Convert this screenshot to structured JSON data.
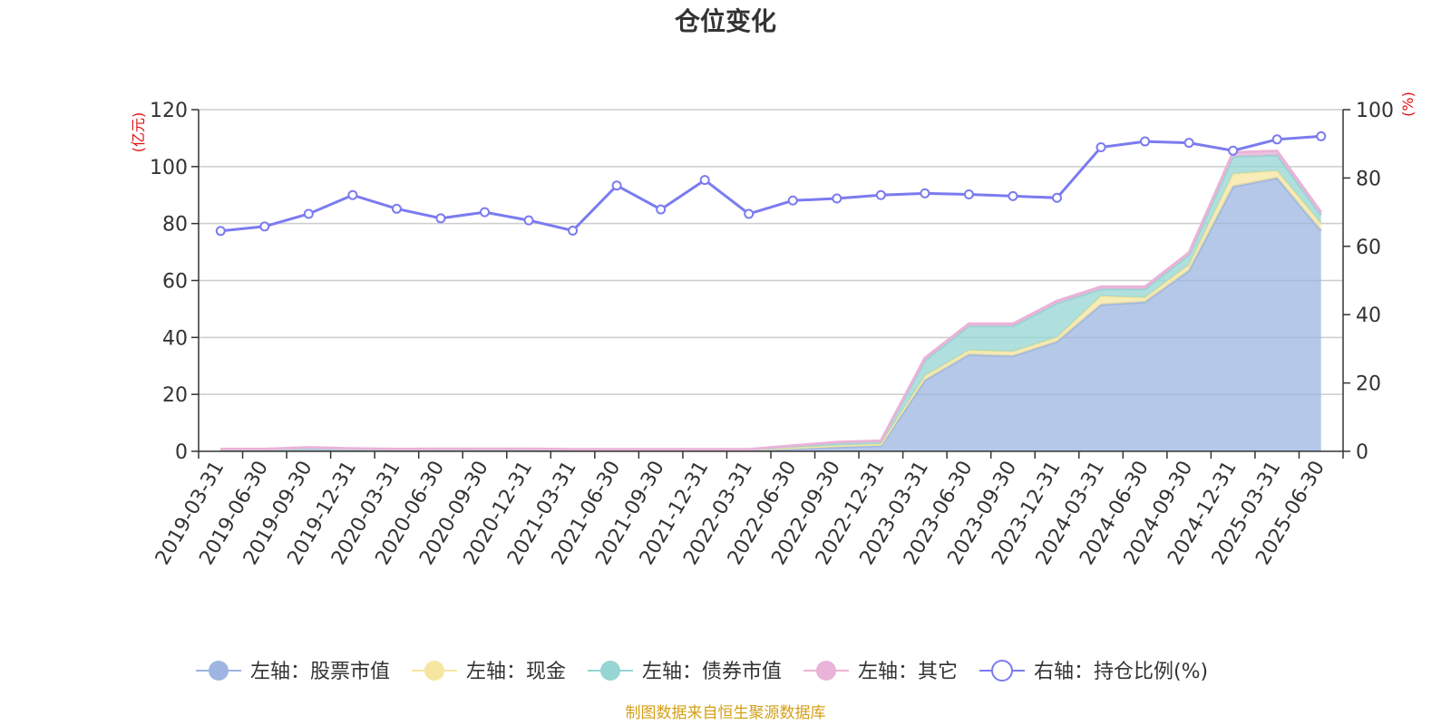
{
  "chart_data": {
    "type": "area",
    "title": "仓位变化",
    "left_unit": "(亿元)",
    "right_unit": "(%)",
    "categories": [
      "2019-03-31",
      "2019-06-30",
      "2019-09-30",
      "2019-12-31",
      "2020-03-31",
      "2020-06-30",
      "2020-09-30",
      "2020-12-31",
      "2021-03-31",
      "2021-06-30",
      "2021-09-30",
      "2021-12-31",
      "2022-03-31",
      "2022-06-30",
      "2022-09-30",
      "2022-12-31",
      "2023-03-31",
      "2023-06-30",
      "2023-09-30",
      "2023-12-31",
      "2024-03-31",
      "2024-06-30",
      "2024-09-30",
      "2024-12-31",
      "2025-03-31",
      "2025-06-30"
    ],
    "left_axis": {
      "min": 0,
      "max": 120,
      "ticks": [
        0,
        20,
        40,
        60,
        80,
        100,
        120
      ]
    },
    "right_axis": {
      "min": 0,
      "max": 100,
      "ticks": [
        0,
        20,
        40,
        60,
        80,
        100
      ]
    },
    "series": [
      {
        "name": "左轴：股票市值",
        "axis": "left",
        "stack": true,
        "color": "#9db5e0",
        "values": [
          0.5,
          0.5,
          1.0,
          0.7,
          0.5,
          0.6,
          0.6,
          0.6,
          0.4,
          0.4,
          0.4,
          0.4,
          0.4,
          1.0,
          1.5,
          2.0,
          25.0,
          34.0,
          33.5,
          38.5,
          51.5,
          52.5,
          63.5,
          93.0,
          96.0,
          77.5
        ]
      },
      {
        "name": "左轴：现金",
        "axis": "left",
        "stack": true,
        "color": "#f6e6a0",
        "values": [
          0.1,
          0.1,
          0.1,
          0.1,
          0.1,
          0.1,
          0.1,
          0.1,
          0.1,
          0.1,
          0.1,
          0.1,
          0.1,
          0.3,
          0.5,
          0.5,
          1.5,
          1.5,
          1.5,
          1.5,
          3.0,
          1.5,
          2.0,
          4.5,
          2.5,
          2.5
        ]
      },
      {
        "name": "左轴：债券市值",
        "axis": "left",
        "stack": true,
        "color": "#95d5d3",
        "values": [
          0.0,
          0.0,
          0.0,
          0.0,
          0.0,
          0.0,
          0.0,
          0.0,
          0.0,
          0.0,
          0.0,
          0.0,
          0.0,
          0.5,
          1.0,
          1.0,
          5.5,
          8.5,
          9.0,
          12.0,
          2.5,
          3.0,
          3.5,
          6.0,
          5.5,
          3.0
        ]
      },
      {
        "name": "左轴：其它",
        "axis": "left",
        "stack": true,
        "color": "#eab3d8",
        "values": [
          0.2,
          0.2,
          0.3,
          0.2,
          0.2,
          0.2,
          0.2,
          0.2,
          0.2,
          0.2,
          0.2,
          0.2,
          0.2,
          0.2,
          0.2,
          0.2,
          0.8,
          0.8,
          0.8,
          0.8,
          0.8,
          0.8,
          0.8,
          1.5,
          1.5,
          1.0
        ]
      },
      {
        "name": "右轴：持仓比例(%)",
        "axis": "right",
        "stack": false,
        "color": "#7b7bf0",
        "values": [
          64.5,
          65.8,
          69.5,
          75.0,
          71.0,
          68.2,
          70.0,
          67.6,
          64.6,
          77.8,
          70.8,
          79.4,
          69.5,
          73.4,
          74.0,
          75.0,
          75.5,
          75.2,
          74.7,
          74.2,
          89.0,
          90.7,
          90.3,
          88.0,
          91.3,
          92.2
        ]
      }
    ]
  },
  "source_text": "制图数据来自恒生聚源数据库"
}
